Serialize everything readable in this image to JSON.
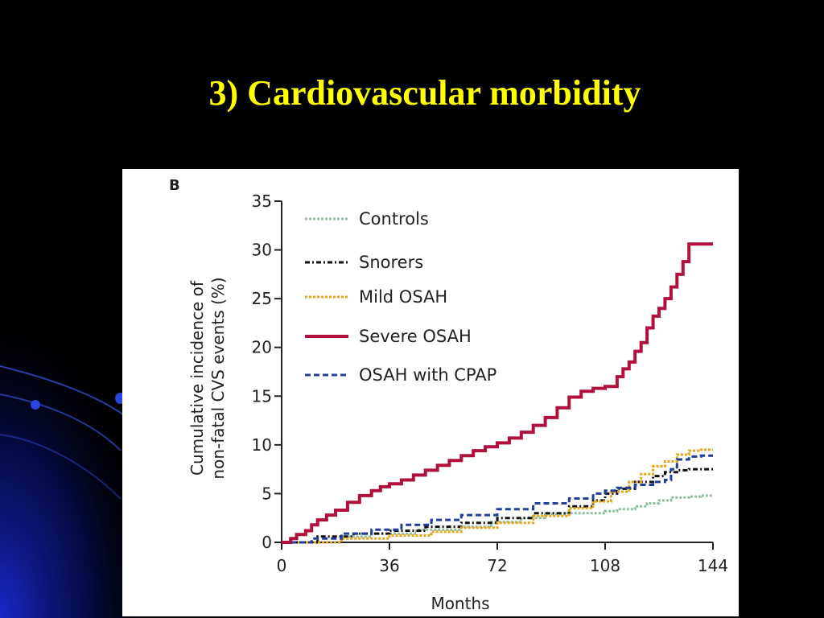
{
  "slide": {
    "title": "3) Cardiovascular morbidity",
    "colors": {
      "background": "#000000",
      "title": "#ffff00",
      "decoration": "#1a2bd6"
    }
  },
  "chart_data": {
    "type": "line",
    "step": true,
    "panel_label": "B",
    "xlabel": "Months",
    "ylabel": "Cumulative incidence of non-fatal CVS events (%)",
    "ylabel_lines": [
      "Cumulative incidence of",
      "non-fatal CVS events (%)"
    ],
    "xlim": [
      0,
      144
    ],
    "ylim": [
      0,
      35
    ],
    "xticks": [
      0,
      36,
      72,
      108,
      144
    ],
    "yticks": [
      0,
      5,
      10,
      15,
      20,
      25,
      30,
      35
    ],
    "grid": false,
    "legend_position": "top-left",
    "series": [
      {
        "name": "Controls",
        "color": "#8fbf9f",
        "dash": "3,2",
        "width": 3,
        "x": [
          0,
          20,
          30,
          45,
          60,
          70,
          80,
          88,
          95,
          100,
          108,
          112,
          118,
          122,
          126,
          130,
          136,
          140,
          144
        ],
        "y": [
          0,
          0.6,
          0.9,
          1.3,
          1.6,
          2.1,
          2.5,
          2.9,
          3.0,
          3.0,
          3.2,
          3.4,
          3.7,
          4.0,
          4.3,
          4.6,
          4.7,
          4.8,
          4.8
        ]
      },
      {
        "name": "Snorers",
        "color": "#111111",
        "dash": "6,3,2,3",
        "width": 3,
        "x": [
          0,
          12,
          24,
          36,
          48,
          60,
          72,
          84,
          96,
          104,
          108,
          112,
          118,
          124,
          128,
          132,
          136,
          140,
          144
        ],
        "y": [
          0,
          0.6,
          0.9,
          1.2,
          1.6,
          2.0,
          2.5,
          3.0,
          3.7,
          4.3,
          5.0,
          5.5,
          6.2,
          6.8,
          7.2,
          7.4,
          7.5,
          7.5,
          7.5
        ]
      },
      {
        "name": "Mild OSAH",
        "color": "#e8a317",
        "dash": "3,2",
        "width": 3,
        "x": [
          0,
          20,
          36,
          50,
          60,
          72,
          84,
          96,
          104,
          110,
          116,
          120,
          124,
          128,
          132,
          136,
          140,
          144
        ],
        "y": [
          0,
          0.4,
          0.7,
          1.1,
          1.5,
          2.0,
          2.7,
          3.5,
          4.2,
          5.2,
          6.2,
          7.0,
          7.8,
          8.3,
          9.0,
          9.4,
          9.5,
          9.5
        ]
      },
      {
        "name": "Severe OSAH",
        "color": "#b0103a",
        "dash": "",
        "width": 4,
        "x": [
          0,
          3,
          5,
          8,
          10,
          12,
          15,
          18,
          22,
          26,
          30,
          33,
          36,
          40,
          44,
          48,
          52,
          56,
          60,
          64,
          68,
          72,
          76,
          80,
          84,
          88,
          92,
          96,
          100,
          104,
          108,
          112,
          114,
          116,
          118,
          120,
          122,
          124,
          126,
          128,
          130,
          132,
          134,
          136,
          138,
          140,
          144
        ],
        "y": [
          0,
          0.4,
          0.8,
          1.2,
          1.8,
          2.3,
          2.8,
          3.3,
          4.1,
          4.8,
          5.3,
          5.7,
          6.0,
          6.4,
          6.9,
          7.4,
          7.9,
          8.4,
          8.9,
          9.4,
          9.8,
          10.2,
          10.7,
          11.3,
          12.0,
          12.8,
          13.8,
          14.9,
          15.5,
          15.8,
          16.0,
          17.0,
          17.8,
          18.5,
          19.6,
          20.5,
          22.0,
          23.2,
          24.0,
          25.0,
          26.2,
          27.5,
          28.8,
          30.6,
          30.6,
          30.6,
          30.6
        ]
      },
      {
        "name": "OSAH with CPAP",
        "color": "#1f3f9a",
        "dash": "7,4",
        "width": 3,
        "x": [
          0,
          10,
          20,
          30,
          40,
          50,
          60,
          72,
          84,
          96,
          104,
          108,
          112,
          118,
          124,
          128,
          130,
          132,
          136,
          140,
          144
        ],
        "y": [
          0,
          0.4,
          0.9,
          1.3,
          1.8,
          2.3,
          2.8,
          3.4,
          4.0,
          4.5,
          5.0,
          5.3,
          5.6,
          5.9,
          6.2,
          6.4,
          7.5,
          8.5,
          8.8,
          8.9,
          8.9
        ]
      }
    ]
  }
}
